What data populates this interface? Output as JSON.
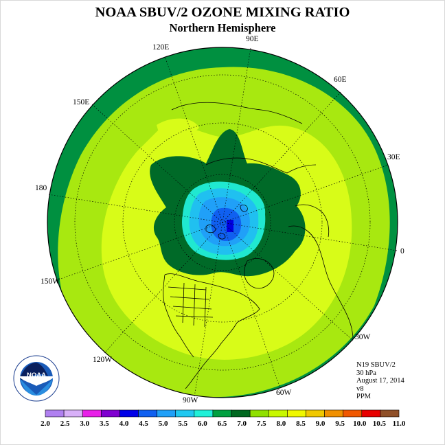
{
  "title": "NOAA SBUV/2 OZONE MIXING RATIO",
  "subtitle": "Northern Hemisphere",
  "longitudes": {
    "lon_120e": "120E",
    "lon_90e": "90E",
    "lon_60e": "60E",
    "lon_150e": "150E",
    "lon_30e": "30E",
    "lon_180": "180",
    "lon_0": "0",
    "lon_150w": "150W",
    "lon_30w": "30W",
    "lon_120w": "120W",
    "lon_60w": "60W",
    "lon_90w": "90W"
  },
  "info": {
    "satellite": "N19 SBUV/2",
    "level": "30 hPa",
    "date": "August 17, 2014",
    "version": "v8",
    "units": "PPM"
  },
  "logo": {
    "text": "NOAA",
    "ring_text": "NATIONAL OCEANIC AND ATMOSPHERIC ADMINISTRATION · U.S. DEPARTMENT OF COMMERCE"
  },
  "colorbar": {
    "labels": [
      "2.0",
      "2.5",
      "3.0",
      "3.5",
      "4.0",
      "4.5",
      "5.0",
      "5.5",
      "6.0",
      "6.5",
      "7.0",
      "7.5",
      "8.0",
      "8.5",
      "9.0",
      "9.5",
      "10.0",
      "10.5",
      "11.0"
    ],
    "colors": [
      "#b080f0",
      "#d8b0f8",
      "#e820e8",
      "#8000d0",
      "#0000e8",
      "#1060f0",
      "#20a0f8",
      "#20c8f0",
      "#20f0d8",
      "#00a040",
      "#006820",
      "#90e000",
      "#c8f800",
      "#f0f800",
      "#f0c800",
      "#f09000",
      "#f05800",
      "#e80000",
      "#905028"
    ]
  },
  "map": {
    "zones": {
      "outer_band": "#009040",
      "main": "#a8e810",
      "inner_bright": "#d8fc18",
      "dark_ring": "#006a28",
      "teal": "#20e8d0",
      "cyan": "#20c0f0",
      "light_blue": "#20a0f8",
      "blue": "#1060f0",
      "core": "#0000e0"
    }
  }
}
